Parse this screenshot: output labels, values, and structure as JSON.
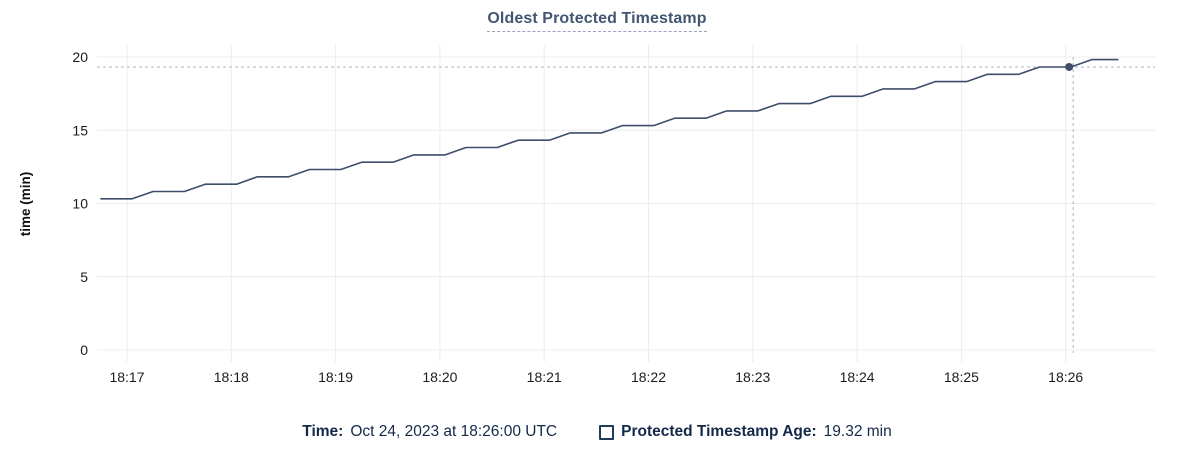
{
  "title": "Oldest Protected Timestamp",
  "footer": {
    "time_label": "Time:",
    "time_value": "Oct 24, 2023 at 18:26:00 UTC",
    "series_label": "Protected Timestamp Age:",
    "series_value": "19.32 min",
    "legend_checkbox_checked": false
  },
  "colors": {
    "line": "#3e4d6a",
    "title": "#435672",
    "footer_text": "#14294a",
    "grid": "#ececec",
    "crosshair": "#a3b8c6",
    "axis_text": "#1c1c1c",
    "dot": "#3e4d6a"
  },
  "chart_data": {
    "type": "line",
    "title": "Oldest Protected Timestamp",
    "xlabel": "",
    "ylabel": "time (min)",
    "ylim": [
      0,
      20
    ],
    "yticks": [
      0,
      5,
      10,
      15,
      20
    ],
    "xticks": [
      "18:17",
      "18:18",
      "18:19",
      "18:20",
      "18:21",
      "18:22",
      "18:23",
      "18:24",
      "18:25",
      "18:26"
    ],
    "x_range": [
      "18:16:45",
      "18:26:30"
    ],
    "grid": true,
    "legend_position": "bottom",
    "series": [
      {
        "name": "Protected Timestamp Age",
        "unit": "min",
        "points": [
          [
            "18:16:45",
            10.32
          ],
          [
            "18:17:03",
            10.32
          ],
          [
            "18:17:15",
            10.82
          ],
          [
            "18:17:33",
            10.82
          ],
          [
            "18:17:45",
            11.32
          ],
          [
            "18:18:03",
            11.32
          ],
          [
            "18:18:15",
            11.82
          ],
          [
            "18:18:33",
            11.82
          ],
          [
            "18:18:45",
            12.32
          ],
          [
            "18:19:03",
            12.32
          ],
          [
            "18:19:15",
            12.82
          ],
          [
            "18:19:33",
            12.82
          ],
          [
            "18:19:45",
            13.32
          ],
          [
            "18:20:03",
            13.32
          ],
          [
            "18:20:15",
            13.82
          ],
          [
            "18:20:33",
            13.82
          ],
          [
            "18:20:45",
            14.32
          ],
          [
            "18:21:03",
            14.32
          ],
          [
            "18:21:15",
            14.82
          ],
          [
            "18:21:33",
            14.82
          ],
          [
            "18:21:45",
            15.32
          ],
          [
            "18:22:03",
            15.32
          ],
          [
            "18:22:15",
            15.82
          ],
          [
            "18:22:33",
            15.82
          ],
          [
            "18:22:45",
            16.32
          ],
          [
            "18:23:03",
            16.32
          ],
          [
            "18:23:15",
            16.82
          ],
          [
            "18:23:33",
            16.82
          ],
          [
            "18:23:45",
            17.32
          ],
          [
            "18:24:03",
            17.32
          ],
          [
            "18:24:15",
            17.82
          ],
          [
            "18:24:33",
            17.82
          ],
          [
            "18:24:45",
            18.32
          ],
          [
            "18:25:03",
            18.32
          ],
          [
            "18:25:15",
            18.82
          ],
          [
            "18:25:33",
            18.82
          ],
          [
            "18:25:45",
            19.32
          ],
          [
            "18:26:03",
            19.32
          ],
          [
            "18:26:15",
            19.82
          ],
          [
            "18:26:30",
            19.82
          ]
        ]
      }
    ],
    "crosshair": {
      "time": "18:26:02",
      "value": 19.32
    }
  }
}
